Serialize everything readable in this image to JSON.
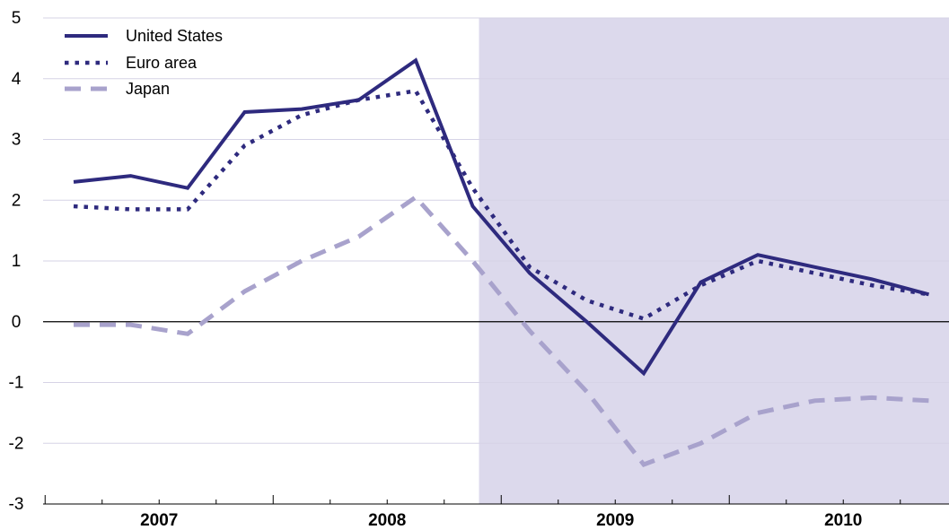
{
  "chart_data": {
    "type": "line",
    "title": "",
    "xlabel": "",
    "ylabel": "",
    "ylim": [
      -3,
      5
    ],
    "yticks": [
      5,
      4,
      3,
      2,
      1,
      0,
      -1,
      -2,
      -3
    ],
    "year_labels": [
      "2007",
      "2008",
      "2009",
      "2010"
    ],
    "x": [
      "2007-Q1",
      "2007-Q2",
      "2007-Q3",
      "2007-Q4",
      "2008-Q1",
      "2008-Q2",
      "2008-Q3",
      "2008-Q4",
      "2009-Q1",
      "2009-Q2",
      "2009-Q3",
      "2009-Q4",
      "2010-Q1",
      "2010-Q2",
      "2010-Q3",
      "2010-Q4"
    ],
    "projection_start": "2008-Q4",
    "grid": true,
    "legend": "top-left",
    "colors": {
      "united_states": "#2e2a7e",
      "euro_area": "#2e2a7e",
      "japan": "#a8a2cc",
      "shade": "#dcd9ec",
      "grid": "#d6d3e6",
      "zero_line": "#000000"
    },
    "series": [
      {
        "name": "United States",
        "style": "solid",
        "values": [
          2.3,
          2.4,
          2.2,
          3.45,
          3.5,
          3.65,
          4.3,
          1.9,
          0.8,
          0.0,
          -0.85,
          0.65,
          1.1,
          0.9,
          0.7,
          0.45
        ]
      },
      {
        "name": "Euro area",
        "style": "dotted",
        "values": [
          1.9,
          1.85,
          1.85,
          2.9,
          3.4,
          3.65,
          3.8,
          2.2,
          0.9,
          0.35,
          0.05,
          0.6,
          1.0,
          0.8,
          0.6,
          0.45
        ]
      },
      {
        "name": "Japan",
        "style": "dashed",
        "values": [
          -0.05,
          -0.05,
          -0.2,
          0.5,
          1.0,
          1.4,
          2.05,
          1.0,
          -0.15,
          -1.15,
          -2.35,
          -2.0,
          -1.5,
          -1.3,
          -1.25,
          -1.3
        ]
      }
    ]
  }
}
